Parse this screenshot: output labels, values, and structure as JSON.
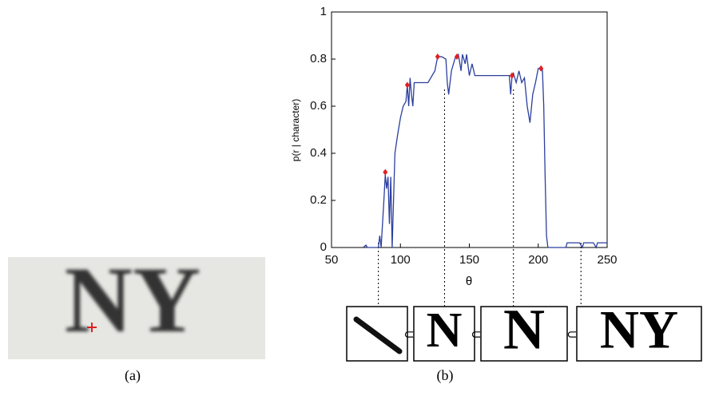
{
  "chart_data": {
    "type": "line",
    "xlabel": "θ",
    "ylabel": "p(r | character)",
    "xlim": [
      50,
      250
    ],
    "ylim": [
      0,
      1
    ],
    "xticks": [
      50,
      100,
      150,
      200,
      250
    ],
    "yticks": [
      0,
      0.2,
      0.4,
      0.6,
      0.8,
      1
    ],
    "series": [
      {
        "color": "#2b3f9e",
        "x": [
          73,
          75,
          76,
          84,
          85,
          86,
          87,
          88,
          89,
          90,
          91,
          92,
          93,
          94,
          95,
          96,
          98,
          100,
          102,
          104,
          105,
          106,
          107,
          108,
          109,
          110,
          115,
          120,
          125,
          127,
          130,
          133,
          134,
          135,
          137,
          140,
          142,
          144,
          145,
          147,
          148,
          150,
          152,
          154,
          160,
          170,
          179,
          180,
          181,
          182,
          184,
          186,
          188,
          190,
          192,
          194,
          196,
          198,
          200,
          203,
          204,
          205,
          206,
          207,
          220,
          221,
          230,
          232,
          233,
          240,
          242,
          243,
          250
        ],
        "values": [
          0,
          0.01,
          0,
          0,
          0.05,
          0,
          0.1,
          0.2,
          0.31,
          0.25,
          0.3,
          0.1,
          0.3,
          0,
          0.2,
          0.4,
          0.48,
          0.55,
          0.6,
          0.62,
          0.69,
          0.6,
          0.72,
          0.65,
          0.6,
          0.7,
          0.7,
          0.7,
          0.75,
          0.81,
          0.81,
          0.8,
          0.7,
          0.65,
          0.75,
          0.81,
          0.82,
          0.75,
          0.82,
          0.78,
          0.82,
          0.73,
          0.78,
          0.73,
          0.73,
          0.73,
          0.73,
          0.65,
          0.73,
          0.74,
          0.7,
          0.75,
          0.7,
          0.72,
          0.6,
          0.53,
          0.65,
          0.7,
          0.76,
          0.76,
          0.6,
          0.3,
          0.05,
          0,
          0,
          0.02,
          0.02,
          0,
          0.02,
          0.02,
          0,
          0.02,
          0.02
        ]
      }
    ],
    "points": {
      "color": "#e02020",
      "x": [
        89,
        105,
        127,
        141,
        181,
        202
      ],
      "values": [
        0.32,
        0.69,
        0.81,
        0.81,
        0.73,
        0.76
      ]
    },
    "guides_x": [
      84,
      132,
      182,
      231
    ]
  },
  "panel_a": {
    "image_text": "NY",
    "caption": "(a)"
  },
  "panel_b": {
    "caption": "(b)",
    "subset_symbol": "⊂",
    "crops": [
      "N",
      "N",
      "NY"
    ]
  }
}
